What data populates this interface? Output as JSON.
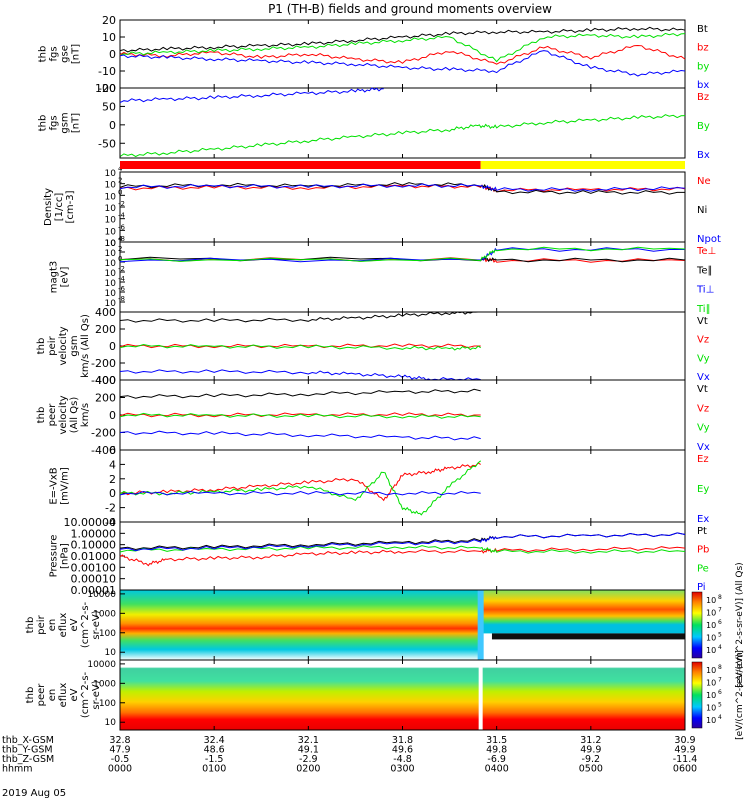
{
  "title": "P1 (TH-B) fields and ground moments overview",
  "date_label": "2019 Aug 05",
  "ephemeris": {
    "rows": [
      {
        "label": "thb_X-GSM",
        "values": [
          "32.8",
          "32.4",
          "32.1",
          "31.8",
          "31.5",
          "31.2",
          "30.9"
        ]
      },
      {
        "label": "thb_Y-GSM",
        "values": [
          "47.9",
          "48.6",
          "49.1",
          "49.6",
          "49.8",
          "49.9",
          "49.9"
        ]
      },
      {
        "label": "thb_Z-GSM",
        "values": [
          "-0.5",
          "-1.5",
          "-2.9",
          "-4.8",
          "-6.9",
          "-9.2",
          "-11.4"
        ]
      },
      {
        "label": "hhmm",
        "values": [
          "0000",
          "0100",
          "0200",
          "0300",
          "0400",
          "0500",
          "0600"
        ]
      }
    ]
  },
  "colors": {
    "black": "#000000",
    "red": "#ff0000",
    "green": "#00e000",
    "blue": "#0000ff",
    "yellow": "#ffff00"
  },
  "mode_bar": {
    "segments": [
      {
        "from": 0,
        "to": 3.83,
        "color": "#ff0000"
      },
      {
        "from": 3.83,
        "to": 6,
        "color": "#ffff00"
      }
    ]
  },
  "chart_data": [
    {
      "type": "line",
      "id": "fgs",
      "ylabel_lines": [
        "thb",
        "fgs",
        "gse",
        "[nT]"
      ],
      "ylim": [
        -20,
        20
      ],
      "yticks": [
        "20",
        "10",
        "0",
        "-10",
        "-20"
      ],
      "series": [
        {
          "name": "Bt",
          "color": "#000000",
          "x": [
            0,
            0.5,
            1,
            1.5,
            2,
            2.5,
            3,
            3.5,
            4,
            4.5,
            5,
            5.5,
            6
          ],
          "values": [
            2,
            3,
            4,
            5,
            6,
            8,
            10,
            12,
            13,
            13,
            14,
            15,
            14
          ]
        },
        {
          "name": "bz",
          "color": "#ff0000",
          "x": [
            0,
            0.5,
            1,
            1.5,
            2,
            2.5,
            3,
            3.5,
            4,
            4.5,
            5,
            5.5,
            6
          ],
          "values": [
            0,
            -1,
            1,
            -2,
            0,
            -3,
            -5,
            2,
            -6,
            4,
            -2,
            5,
            -3
          ]
        },
        {
          "name": "by",
          "color": "#00e000",
          "x": [
            0,
            0.5,
            1,
            1.5,
            2,
            2.5,
            3,
            3.5,
            4,
            4.5,
            5,
            5.5,
            6
          ],
          "values": [
            0,
            1,
            2,
            3,
            4,
            6,
            8,
            10,
            -4,
            10,
            11,
            10,
            12
          ]
        },
        {
          "name": "bx",
          "color": "#0000ff",
          "x": [
            0,
            0.5,
            1,
            1.5,
            2,
            2.5,
            3,
            3.5,
            4,
            4.5,
            5,
            5.5,
            6
          ],
          "values": [
            -1,
            -2,
            -3,
            -4,
            -5,
            -6,
            -8,
            -9,
            -10,
            2,
            -8,
            -12,
            -10
          ]
        }
      ]
    },
    {
      "type": "line",
      "id": "fgs-gsm",
      "ylabel_lines": [
        "thb",
        "fgs",
        "gsm",
        "[nT]"
      ],
      "ylim": [
        -90,
        100
      ],
      "yticks": [
        "100",
        "50",
        "0",
        "-50"
      ],
      "series": [
        {
          "name": "Bz",
          "color": "#ff0000",
          "x": [],
          "values": []
        },
        {
          "name": "By",
          "color": "#00e000",
          "x": [
            0,
            0.5,
            1,
            1.5,
            2,
            2.5,
            3,
            3.5,
            3.8,
            4,
            4.5,
            5,
            5.5,
            6
          ],
          "values": [
            -84,
            -76,
            -66,
            -55,
            -43,
            -32,
            -22,
            -13,
            -2,
            -6,
            6,
            13,
            20,
            25
          ]
        },
        {
          "name": "Bx",
          "color": "#0000ff",
          "x": [
            0,
            0.5,
            1,
            1.5,
            2,
            2.5,
            2.8
          ],
          "values": [
            65,
            70,
            74,
            80,
            86,
            92,
            98
          ]
        }
      ]
    },
    {
      "type": "line",
      "id": "density",
      "log": true,
      "ylabel_lines": [
        "Density",
        "[1/cc]",
        "[cm-3]"
      ],
      "ylim": [
        -8,
        4
      ],
      "yticks": [
        "10",
        "10",
        "10",
        "10",
        "10",
        "10",
        "10"
      ],
      "ytick_exps": [
        "4",
        "2",
        "0",
        "-2",
        "-4",
        "-6",
        "-8"
      ],
      "series": [
        {
          "name": "Ne",
          "color": "#ff0000",
          "x": [
            0,
            1,
            2,
            3,
            3.83,
            4,
            5,
            6
          ],
          "values": [
            1.2,
            1.4,
            1.3,
            1.6,
            1.5,
            0.9,
            1.0,
            1.1
          ]
        },
        {
          "name": "Ni",
          "color": "#000000",
          "x": [
            0,
            1,
            2,
            3,
            3.83,
            4,
            5,
            6
          ],
          "values": [
            1.5,
            1.8,
            1.6,
            1.9,
            1.8,
            0.6,
            0.5,
            0.5
          ]
        },
        {
          "name": "Npot",
          "color": "#0000ff",
          "x": [
            0,
            1,
            2,
            3,
            3.83,
            4,
            5,
            6
          ],
          "values": [
            1.4,
            1.6,
            1.5,
            1.7,
            1.6,
            1.0,
            1.0,
            1.2
          ]
        }
      ]
    },
    {
      "type": "line",
      "id": "temperature",
      "log": true,
      "ylabel_lines": [
        "magt3",
        "[eV]"
      ],
      "ylim": [
        -10,
        4
      ],
      "yticks": [
        "10",
        "10",
        "10",
        "10",
        "10",
        "10",
        "10"
      ],
      "ytick_exps": [
        "4",
        "2",
        "0",
        "-2",
        "-4",
        "-6",
        "-8"
      ],
      "series": [
        {
          "name": "Te⊥",
          "color": "#ff0000",
          "x": [
            0,
            3.83,
            4,
            6
          ],
          "values": [
            0.5,
            0.5,
            0.3,
            0.3
          ]
        },
        {
          "name": "Te∥",
          "color": "#000000",
          "x": [
            0,
            3.83,
            4,
            6
          ],
          "values": [
            0.6,
            0.6,
            0.4,
            0.4
          ]
        },
        {
          "name": "Ti⊥",
          "color": "#0000ff",
          "x": [
            0,
            3.83,
            4,
            6
          ],
          "values": [
            0.4,
            0.4,
            2.5,
            2.5
          ]
        },
        {
          "name": "Ti∥",
          "color": "#00e000",
          "x": [
            0,
            3.83,
            4,
            6
          ],
          "values": [
            0.45,
            0.45,
            2.6,
            2.6
          ]
        }
      ]
    },
    {
      "type": "line",
      "id": "peir-velocity",
      "ylabel_lines": [
        "thb",
        "peir",
        "velocity",
        "gsm",
        "km/s (All Qs)"
      ],
      "ylim": [
        -400,
        400
      ],
      "yticks": [
        "400",
        "200",
        "0",
        "-200",
        "-400"
      ],
      "series": [
        {
          "name": "Vt",
          "color": "#000000",
          "x": [
            0,
            1,
            2,
            2.5,
            3,
            3.5,
            3.83
          ],
          "values": [
            300,
            300,
            310,
            330,
            360,
            390,
            400
          ]
        },
        {
          "name": "Vz",
          "color": "#ff0000",
          "x": [
            0,
            1,
            2,
            3,
            3.83
          ],
          "values": [
            0,
            0,
            0,
            5,
            0
          ]
        },
        {
          "name": "Vy",
          "color": "#00e000",
          "x": [
            0,
            1,
            2,
            3,
            3.5,
            3.83
          ],
          "values": [
            0,
            -5,
            -10,
            -20,
            -30,
            -20
          ]
        },
        {
          "name": "Vx",
          "color": "#0000ff",
          "x": [
            0,
            1,
            2,
            2.5,
            3,
            3.3,
            3.83
          ],
          "values": [
            -300,
            -300,
            -310,
            -330,
            -360,
            -390,
            -395
          ]
        }
      ]
    },
    {
      "type": "line",
      "id": "peer-velocity",
      "ylabel_lines": [
        "thb",
        "peer",
        "velocity",
        "(All Qs)",
        "km/s"
      ],
      "ylim": [
        -400,
        400
      ],
      "yticks": [
        "400",
        "200",
        "0",
        "-200",
        "-400"
      ],
      "series": [
        {
          "name": "Vt",
          "color": "#000000",
          "x": [
            0,
            1,
            2,
            3,
            3.83
          ],
          "values": [
            210,
            220,
            240,
            265,
            275
          ]
        },
        {
          "name": "Vz",
          "color": "#ff0000",
          "x": [
            0,
            1,
            2,
            3,
            3.83
          ],
          "values": [
            0,
            0,
            5,
            5,
            0
          ]
        },
        {
          "name": "Vy",
          "color": "#00e000",
          "x": [
            0,
            1,
            2,
            3,
            3.83
          ],
          "values": [
            0,
            -5,
            -10,
            -15,
            -20
          ]
        },
        {
          "name": "Vx",
          "color": "#0000ff",
          "x": [
            0,
            1,
            2,
            3,
            3.83
          ],
          "values": [
            -200,
            -210,
            -230,
            -255,
            -270
          ]
        }
      ]
    },
    {
      "type": "line",
      "id": "efield",
      "ylabel_lines": [
        "E=-VxB",
        "[mV/m]"
      ],
      "ylim": [
        -4,
        6
      ],
      "yticks": [
        "6",
        "4",
        "2",
        "0",
        "-2",
        "-4"
      ],
      "series": [
        {
          "name": "Ez",
          "color": "#ff0000",
          "x": [
            0,
            0.5,
            1,
            1.5,
            2,
            2.5,
            2.8,
            3,
            3.3,
            3.5,
            3.83
          ],
          "values": [
            0,
            0.2,
            0.5,
            1,
            1.5,
            2,
            -1,
            2.5,
            3,
            3.5,
            4
          ]
        },
        {
          "name": "Ey",
          "color": "#00e000",
          "x": [
            0,
            0.5,
            1,
            1.5,
            2,
            2.5,
            2.8,
            3,
            3.2,
            3.5,
            3.83
          ],
          "values": [
            0,
            0,
            0.2,
            0.5,
            1,
            -1,
            3,
            -2,
            -3,
            1,
            4.5
          ]
        },
        {
          "name": "Ex",
          "color": "#0000ff",
          "x": [
            0,
            1,
            2,
            3,
            3.83
          ],
          "values": [
            0,
            0,
            0,
            0,
            0
          ]
        }
      ]
    },
    {
      "type": "line",
      "id": "pressure",
      "log": true,
      "ylabel_lines": [
        "Pressure",
        "[nPa]"
      ],
      "ylim": [
        -5,
        1
      ],
      "yticks": [
        "10.00000",
        "1.00000",
        "0.10000",
        "0.01000",
        "0.00100",
        "0.00010",
        "0.00001"
      ],
      "series": [
        {
          "name": "Pt",
          "color": "#000000",
          "x": [
            0,
            1,
            2,
            3,
            3.83,
            4,
            5,
            6
          ],
          "values": [
            -1.3,
            -1.2,
            -1.0,
            -0.8,
            -0.6,
            -0.3,
            -0.2,
            -0.1
          ]
        },
        {
          "name": "Pb",
          "color": "#ff0000",
          "x": [
            0,
            0.3,
            0.5,
            1,
            1.5,
            2,
            2.5,
            3,
            3.83,
            4,
            5,
            6
          ],
          "values": [
            -2.0,
            -2.7,
            -2.3,
            -2.2,
            -2.1,
            -1.8,
            -1.7,
            -1.6,
            -1.6,
            -1.5,
            -1.4,
            -1.3
          ]
        },
        {
          "name": "Pe",
          "color": "#00e000",
          "x": [
            0,
            1,
            2,
            3,
            3.83,
            4,
            5,
            6
          ],
          "values": [
            -1.5,
            -1.4,
            -1.3,
            -1.2,
            -1.3,
            -1.6,
            -1.6,
            -1.6
          ]
        },
        {
          "name": "Pi",
          "color": "#0000ff",
          "x": [
            0,
            1,
            2,
            3,
            3.83,
            4,
            5,
            6
          ],
          "values": [
            -1.4,
            -1.3,
            -1.1,
            -0.9,
            -0.7,
            -0.3,
            -0.2,
            -0.1
          ]
        }
      ]
    },
    {
      "type": "heatmap",
      "id": "peir-eflux",
      "ylabel_lines": [
        "thb",
        "peir",
        "en",
        "eflux",
        "eV",
        "(cm^2-s-",
        "sr-eV)"
      ],
      "yticks": [
        "10000",
        "1000",
        "100",
        "10"
      ],
      "ylog_range": [
        0.6,
        4.2
      ],
      "cbar_label": "[eV/(cm^2-s-sr-eV)] (All Qs)",
      "cbar_ticks": [
        "10",
        "10",
        "10",
        "10",
        "10"
      ],
      "cbar_exps": [
        "8",
        "7",
        "6",
        "5",
        "4"
      ]
    },
    {
      "type": "heatmap",
      "id": "peer-eflux",
      "ylabel_lines": [
        "thb",
        "peer",
        "en",
        "eflux",
        "eV",
        "(cm^2-s-",
        "sr-eV)"
      ],
      "yticks": [
        "10000",
        "1000",
        "100",
        "10"
      ],
      "ylog_range": [
        0.6,
        4.2
      ],
      "cbar_label": "[eV/(cm^2-s-sr-eV)]",
      "cbar_ticks": [
        "10",
        "10",
        "10",
        "10",
        "10"
      ],
      "cbar_exps": [
        "8",
        "7",
        "6",
        "5",
        "4"
      ]
    }
  ]
}
